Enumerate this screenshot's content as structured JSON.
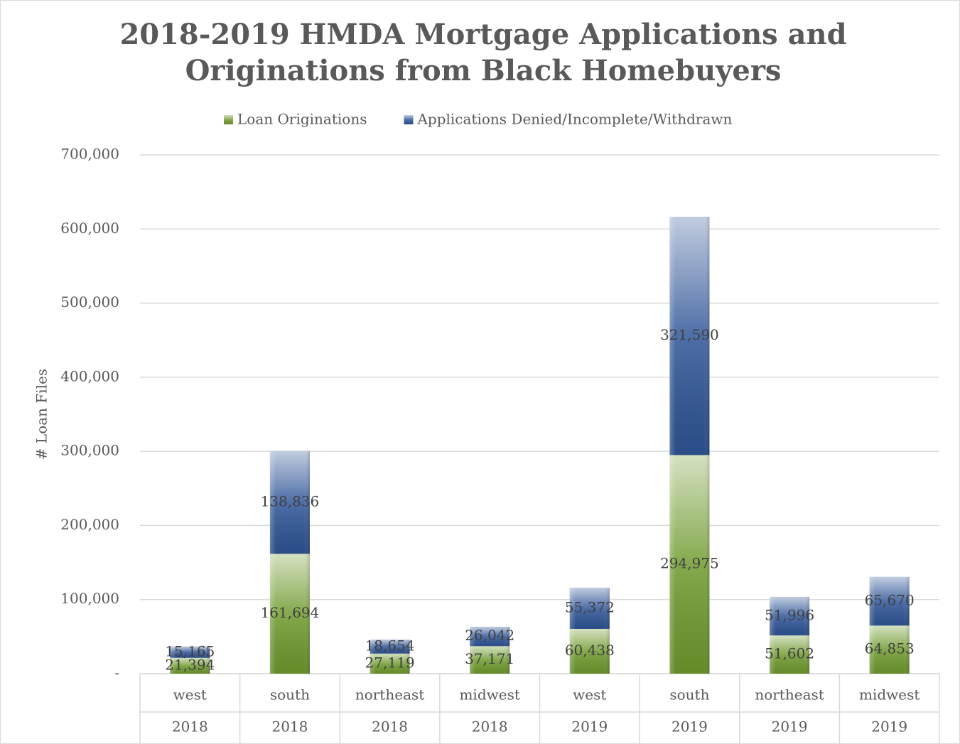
{
  "chart_data": {
    "type": "stacked_bar",
    "title": [
      "2018-2019 HMDA Mortgage Applications and",
      "Originations from Black Homebuyers"
    ],
    "ylabel": "# Loan Files",
    "categories": [
      [
        "west",
        "2018"
      ],
      [
        "south",
        "2018"
      ],
      [
        "northeast",
        "2018"
      ],
      [
        "midwest",
        "2018"
      ],
      [
        "west",
        "2019"
      ],
      [
        "south",
        "2019"
      ],
      [
        "northeast",
        "2019"
      ],
      [
        "midwest",
        "2019"
      ]
    ],
    "series": [
      {
        "name": "Loan Originations",
        "color": "#6f9a2e",
        "values": [
          21394,
          161694,
          27119,
          37171,
          60438,
          294975,
          51602,
          64853
        ],
        "value_labels": [
          "21,394",
          "161,694",
          "27,119",
          "37,171",
          "60,438",
          "294,975",
          "51,602",
          "64,853"
        ]
      },
      {
        "name": "Applications Denied/Incomplete/Withdrawn",
        "color": "#2f5597",
        "values": [
          15165,
          138836,
          18654,
          26042,
          55372,
          321590,
          51996,
          65670
        ],
        "value_labels": [
          "15,165",
          "138,836",
          "18,654",
          "26,042",
          "55,372",
          "321,590",
          "51,996",
          "65,670"
        ]
      }
    ],
    "ylim": [
      0,
      700000
    ],
    "yticks": [
      {
        "value": 0,
        "label": "-"
      },
      {
        "value": 100000,
        "label": "100,000"
      },
      {
        "value": 200000,
        "label": "200,000"
      },
      {
        "value": 300000,
        "label": "300,000"
      },
      {
        "value": 400000,
        "label": "400,000"
      },
      {
        "value": 500000,
        "label": "500,000"
      },
      {
        "value": 600000,
        "label": "600,000"
      },
      {
        "value": 700000,
        "label": "700,000"
      }
    ],
    "grid": true,
    "legend": "top"
  }
}
